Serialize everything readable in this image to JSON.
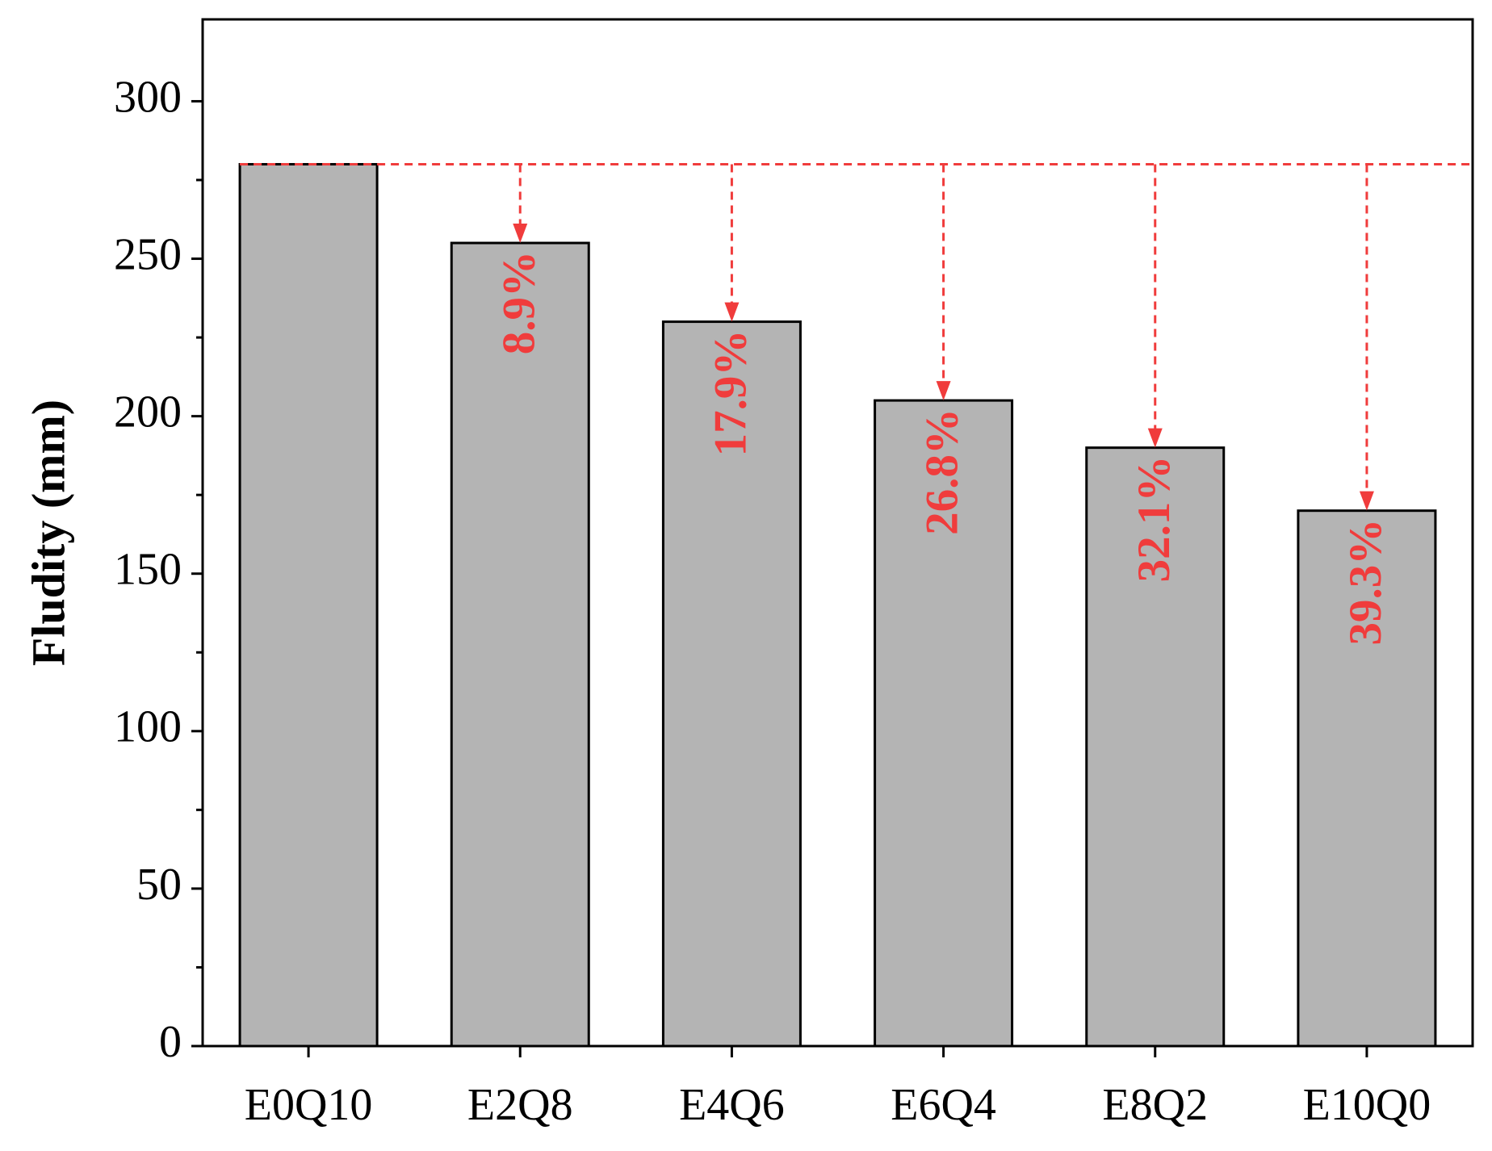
{
  "chart_data": {
    "type": "bar",
    "y_label": "Fludity (mm)",
    "categories": [
      "E0Q10",
      "E2Q8",
      "E4Q6",
      "E6Q4",
      "E8Q2",
      "E10Q0"
    ],
    "values": [
      280,
      255,
      230,
      205,
      190,
      170
    ],
    "color": "#b4b4b4",
    "reduction_labels": [
      null,
      "8.9%",
      "17.9%",
      "26.8%",
      "32.1%",
      "39.3%"
    ],
    "reference_color": "#f03c3c",
    "ylim": [
      0,
      326
    ],
    "yticks": [
      0,
      50,
      100,
      150,
      200,
      250,
      300
    ],
    "yminor_ticks": [
      25,
      75,
      125,
      175,
      225,
      275
    ]
  }
}
